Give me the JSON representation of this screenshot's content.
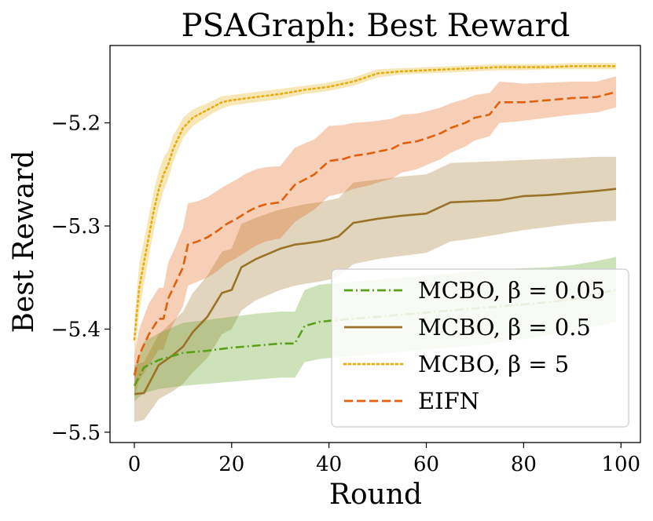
{
  "chart_data": {
    "type": "line",
    "title": "PSAGraph: Best Reward",
    "xlabel": "Round",
    "ylabel": "Best Reward",
    "xlim": [
      -5,
      104
    ],
    "ylim": [
      -5.51,
      -5.125
    ],
    "xticks": [
      0,
      20,
      40,
      60,
      80,
      100
    ],
    "yticks": [
      -5.5,
      -5.4,
      -5.3,
      -5.2
    ],
    "xtick_labels": [
      "0",
      "20",
      "40",
      "60",
      "80",
      "100"
    ],
    "ytick_labels": [
      "−5.5",
      "−5.4",
      "−5.3",
      "−5.2"
    ],
    "grid": false,
    "legend_position": "lower-right",
    "series": [
      {
        "name": "MCBO, β = 0.05",
        "color": "#5aa018",
        "dash": "dashdot",
        "x": [
          0,
          2,
          5,
          10,
          15,
          20,
          25,
          30,
          33,
          35,
          38,
          40,
          45,
          50,
          55,
          60,
          65,
          70,
          75,
          80,
          85,
          90,
          95,
          99
        ],
        "y": [
          -5.455,
          -5.437,
          -5.43,
          -5.423,
          -5.421,
          -5.418,
          -5.416,
          -5.414,
          -5.414,
          -5.397,
          -5.393,
          -5.392,
          -5.39,
          -5.388,
          -5.386,
          -5.384,
          -5.382,
          -5.38,
          -5.378,
          -5.376,
          -5.374,
          -5.371,
          -5.366,
          -5.362
        ],
        "lower": [
          -5.47,
          -5.462,
          -5.458,
          -5.455,
          -5.453,
          -5.451,
          -5.449,
          -5.447,
          -5.447,
          -5.432,
          -5.429,
          -5.428,
          -5.426,
          -5.424,
          -5.422,
          -5.42,
          -5.418,
          -5.416,
          -5.413,
          -5.41,
          -5.406,
          -5.402,
          -5.397,
          -5.393
        ],
        "upper": [
          -5.44,
          -5.412,
          -5.404,
          -5.394,
          -5.391,
          -5.388,
          -5.385,
          -5.383,
          -5.383,
          -5.362,
          -5.357,
          -5.356,
          -5.354,
          -5.352,
          -5.35,
          -5.348,
          -5.346,
          -5.344,
          -5.342,
          -5.341,
          -5.34,
          -5.338,
          -5.334,
          -5.33
        ]
      },
      {
        "name": "MCBO, β = 0.5",
        "color": "#9a7328",
        "dash": "solid",
        "x": [
          0,
          2,
          5,
          8,
          10,
          12,
          15,
          18,
          20,
          22,
          25,
          28,
          30,
          33,
          35,
          38,
          40,
          42,
          45,
          50,
          55,
          60,
          65,
          70,
          75,
          80,
          85,
          90,
          95,
          99
        ],
        "y": [
          -5.463,
          -5.462,
          -5.435,
          -5.425,
          -5.417,
          -5.403,
          -5.388,
          -5.365,
          -5.362,
          -5.34,
          -5.332,
          -5.326,
          -5.322,
          -5.318,
          -5.317,
          -5.315,
          -5.313,
          -5.31,
          -5.297,
          -5.293,
          -5.29,
          -5.288,
          -5.277,
          -5.276,
          -5.275,
          -5.271,
          -5.27,
          -5.268,
          -5.266,
          -5.264
        ],
        "lower": [
          -5.49,
          -5.488,
          -5.468,
          -5.46,
          -5.453,
          -5.442,
          -5.428,
          -5.405,
          -5.4,
          -5.382,
          -5.372,
          -5.366,
          -5.362,
          -5.358,
          -5.356,
          -5.354,
          -5.352,
          -5.349,
          -5.337,
          -5.332,
          -5.329,
          -5.326,
          -5.315,
          -5.312,
          -5.308,
          -5.304,
          -5.301,
          -5.298,
          -5.296,
          -5.295
        ],
        "upper": [
          -5.435,
          -5.432,
          -5.405,
          -5.392,
          -5.383,
          -5.365,
          -5.348,
          -5.325,
          -5.322,
          -5.298,
          -5.292,
          -5.287,
          -5.284,
          -5.281,
          -5.279,
          -5.277,
          -5.275,
          -5.273,
          -5.258,
          -5.255,
          -5.252,
          -5.25,
          -5.239,
          -5.238,
          -5.237,
          -5.236,
          -5.235,
          -5.234,
          -5.233,
          -5.233
        ]
      },
      {
        "name": "MCBO, β = 5",
        "color": "#e6ad0e",
        "dash": "dotted",
        "x": [
          0,
          1,
          2,
          3,
          4,
          5,
          6,
          7,
          8,
          9,
          10,
          11,
          12,
          14,
          16,
          18,
          20,
          25,
          30,
          35,
          40,
          45,
          50,
          55,
          60,
          65,
          70,
          75,
          80,
          85,
          90,
          95,
          99
        ],
        "y": [
          -5.41,
          -5.36,
          -5.335,
          -5.31,
          -5.285,
          -5.265,
          -5.25,
          -5.24,
          -5.225,
          -5.215,
          -5.205,
          -5.2,
          -5.195,
          -5.19,
          -5.185,
          -5.18,
          -5.178,
          -5.175,
          -5.172,
          -5.168,
          -5.165,
          -5.16,
          -5.152,
          -5.15,
          -5.149,
          -5.148,
          -5.147,
          -5.146,
          -5.146,
          -5.146,
          -5.145,
          -5.145,
          -5.145
        ],
        "lower": [
          -5.43,
          -5.383,
          -5.356,
          -5.33,
          -5.304,
          -5.283,
          -5.266,
          -5.254,
          -5.238,
          -5.226,
          -5.215,
          -5.209,
          -5.203,
          -5.197,
          -5.191,
          -5.186,
          -5.183,
          -5.18,
          -5.177,
          -5.172,
          -5.169,
          -5.164,
          -5.156,
          -5.153,
          -5.152,
          -5.151,
          -5.15,
          -5.149,
          -5.149,
          -5.148,
          -5.148,
          -5.148,
          -5.148
        ],
        "upper": [
          -5.39,
          -5.337,
          -5.314,
          -5.29,
          -5.266,
          -5.247,
          -5.234,
          -5.226,
          -5.212,
          -5.204,
          -5.195,
          -5.191,
          -5.187,
          -5.183,
          -5.179,
          -5.174,
          -5.173,
          -5.17,
          -5.167,
          -5.164,
          -5.161,
          -5.156,
          -5.148,
          -5.147,
          -5.146,
          -5.145,
          -5.144,
          -5.143,
          -5.143,
          -5.143,
          -5.142,
          -5.142,
          -5.142
        ]
      },
      {
        "name": "EIFN",
        "color": "#e0600c",
        "dash": "dashed",
        "x": [
          0,
          1,
          3,
          5,
          6,
          7,
          8,
          10,
          11,
          13,
          15,
          17,
          19,
          21,
          23,
          25,
          27,
          30,
          33,
          35,
          37,
          40,
          43,
          45,
          48,
          50,
          53,
          55,
          58,
          60,
          63,
          65,
          68,
          70,
          73,
          75,
          78,
          80,
          85,
          90,
          95,
          99
        ],
        "y": [
          -5.445,
          -5.425,
          -5.405,
          -5.39,
          -5.39,
          -5.37,
          -5.36,
          -5.34,
          -5.318,
          -5.315,
          -5.311,
          -5.305,
          -5.298,
          -5.293,
          -5.287,
          -5.282,
          -5.279,
          -5.277,
          -5.26,
          -5.255,
          -5.25,
          -5.237,
          -5.235,
          -5.232,
          -5.23,
          -5.228,
          -5.225,
          -5.22,
          -5.218,
          -5.215,
          -5.21,
          -5.205,
          -5.2,
          -5.195,
          -5.192,
          -5.18,
          -5.18,
          -5.18,
          -5.178,
          -5.176,
          -5.175,
          -5.17
        ],
        "lower": [
          -5.465,
          -5.45,
          -5.435,
          -5.42,
          -5.42,
          -5.405,
          -5.395,
          -5.378,
          -5.358,
          -5.354,
          -5.35,
          -5.344,
          -5.336,
          -5.331,
          -5.325,
          -5.319,
          -5.315,
          -5.312,
          -5.296,
          -5.29,
          -5.284,
          -5.271,
          -5.268,
          -5.264,
          -5.261,
          -5.258,
          -5.254,
          -5.248,
          -5.245,
          -5.241,
          -5.235,
          -5.229,
          -5.223,
          -5.217,
          -5.213,
          -5.2,
          -5.199,
          -5.198,
          -5.195,
          -5.192,
          -5.19,
          -5.185
        ],
        "upper": [
          -5.425,
          -5.4,
          -5.375,
          -5.36,
          -5.36,
          -5.335,
          -5.325,
          -5.302,
          -5.278,
          -5.276,
          -5.272,
          -5.266,
          -5.26,
          -5.255,
          -5.249,
          -5.245,
          -5.243,
          -5.242,
          -5.224,
          -5.22,
          -5.216,
          -5.203,
          -5.202,
          -5.2,
          -5.199,
          -5.198,
          -5.196,
          -5.192,
          -5.191,
          -5.189,
          -5.185,
          -5.181,
          -5.177,
          -5.173,
          -5.171,
          -5.16,
          -5.161,
          -5.162,
          -5.161,
          -5.16,
          -5.16,
          -5.155
        ]
      }
    ]
  }
}
